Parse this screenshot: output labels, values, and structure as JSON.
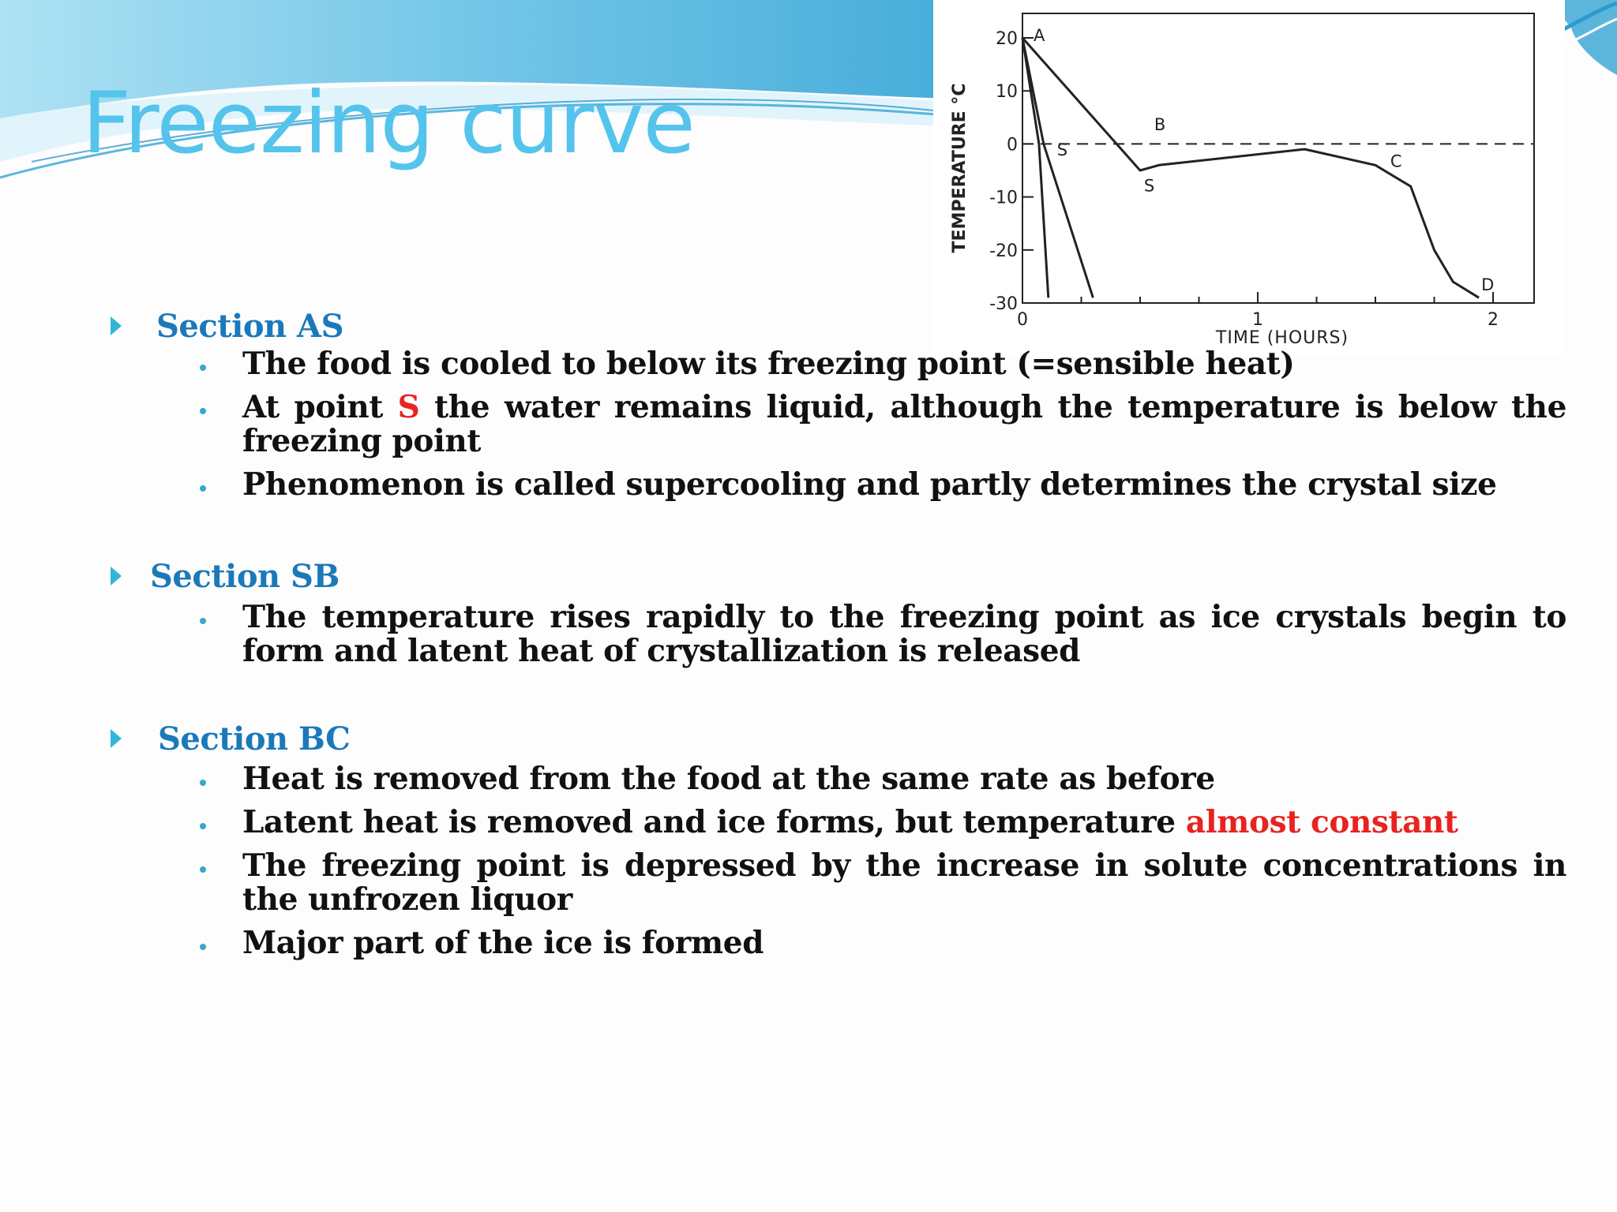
{
  "title": "Freezing curve",
  "colors": {
    "title": "#55c4ec",
    "section_heading": "#1b79b9",
    "accent_red": "#e8231f",
    "arrow": "#31b6d6",
    "wave": "#7cc9e8"
  },
  "figure": {
    "ylabel": "TEMPERATURE °C",
    "xlabel": "TIME (HOURS)",
    "y_ticks": [
      "20",
      "10",
      "0",
      "-10",
      "-20",
      "-30"
    ],
    "x_ticks": [
      "0",
      "1",
      "2"
    ],
    "point_labels": [
      "A",
      "S",
      "B",
      "S",
      "C",
      "D"
    ]
  },
  "chart_data": {
    "type": "line",
    "xlabel": "TIME (HOURS)",
    "ylabel": "TEMPERATURE °C",
    "xlim": [
      0,
      2
    ],
    "ylim": [
      -30,
      20
    ],
    "reference_line": {
      "y": 0,
      "style": "dashed"
    },
    "series": [
      {
        "x": [
          0,
          0.07,
          0.11
        ],
        "y": [
          20,
          0,
          -29
        ]
      },
      {
        "x": [
          0,
          0.09,
          0.3
        ],
        "y": [
          20,
          0,
          -29
        ]
      },
      {
        "x": [
          0,
          0.5,
          0.58,
          1.2,
          1.5,
          1.65,
          1.75,
          1.83,
          1.94
        ],
        "y": [
          20,
          -5,
          -4,
          -1,
          -4,
          -8,
          -20,
          -26,
          -29
        ]
      }
    ],
    "points": [
      {
        "label": "A",
        "x": 0,
        "y": 20
      },
      {
        "label": "S",
        "x": 0.12,
        "y": -1
      },
      {
        "label": "B",
        "x": 0.58,
        "y": 2
      },
      {
        "label": "S",
        "x": 0.55,
        "y": -6
      },
      {
        "label": "C",
        "x": 1.55,
        "y": -4
      },
      {
        "label": "D",
        "x": 1.93,
        "y": -27
      }
    ]
  },
  "sections": [
    {
      "heading": "Section AS",
      "points": [
        {
          "parts": [
            "The food is cooled to below its freezing point (=sensible heat)"
          ]
        },
        {
          "parts": [
            "At point ",
            "S",
            " the water remains liquid, although the temperature is below the freezing point"
          ]
        },
        {
          "parts": [
            "Phenomenon is called supercooling and partly determines the crystal size"
          ]
        }
      ]
    },
    {
      "heading": "Section SB",
      "points": [
        {
          "parts": [
            "The temperature rises rapidly to the freezing point as ice crystals begin to form and latent heat of crystallization is released"
          ]
        }
      ]
    },
    {
      "heading": "Section BC",
      "points": [
        {
          "parts": [
            "Heat is removed from the food at the same rate as before"
          ]
        },
        {
          "parts": [
            "Latent heat is removed and ice forms, but temperature ",
            "almost constant"
          ]
        },
        {
          "parts": [
            "The freezing point is depressed by the increase in solute concentrations in the unfrozen liquor"
          ]
        },
        {
          "parts": [
            "Major part of the ice is formed"
          ]
        }
      ]
    }
  ]
}
